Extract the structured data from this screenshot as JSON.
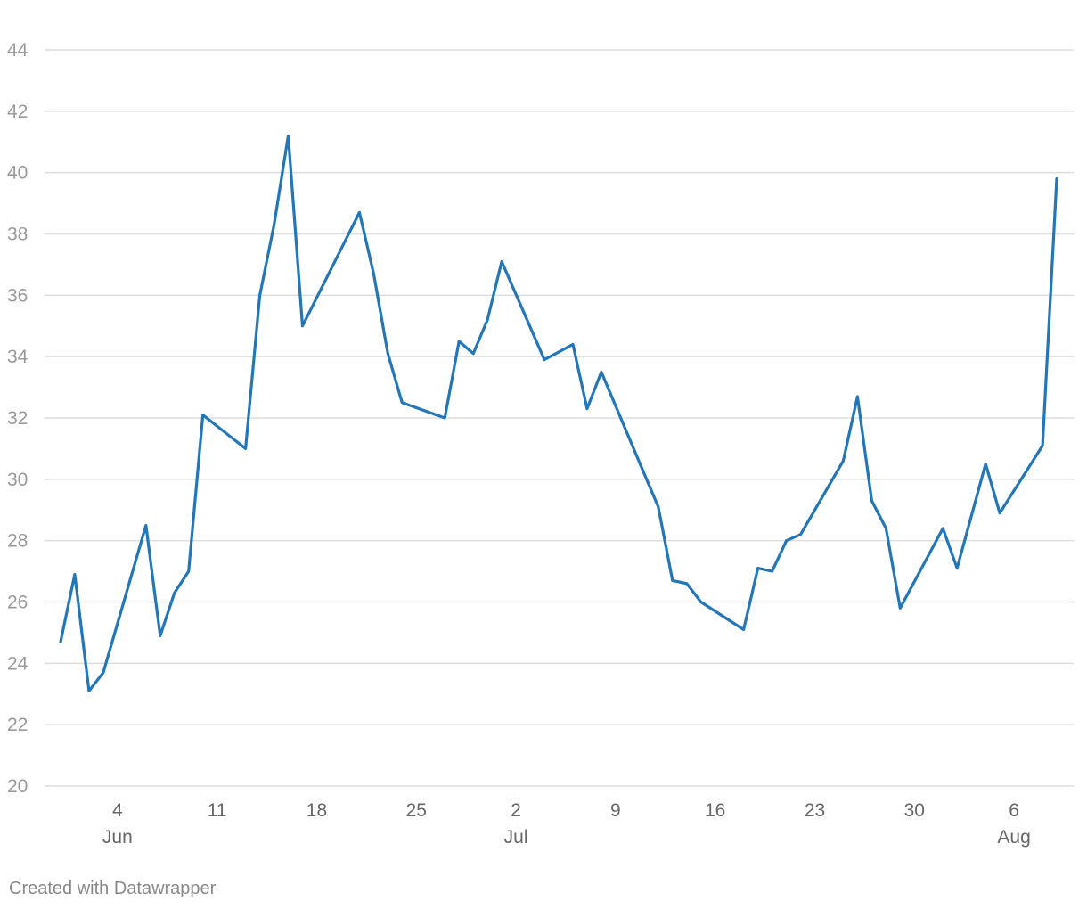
{
  "footer": "Created with Datawrapper",
  "chart_data": {
    "type": "line",
    "title": "",
    "xlabel": "",
    "ylabel": "",
    "ylim": [
      20,
      44
    ],
    "y_ticks": [
      20,
      22,
      24,
      26,
      28,
      30,
      32,
      34,
      36,
      38,
      40,
      42,
      44
    ],
    "x_range": [
      "2020-05-30",
      "2020-08-10"
    ],
    "x_ticks": [
      {
        "date": "2020-06-04",
        "label": "4",
        "month": "Jun"
      },
      {
        "date": "2020-06-11",
        "label": "11",
        "month": ""
      },
      {
        "date": "2020-06-18",
        "label": "18",
        "month": ""
      },
      {
        "date": "2020-06-25",
        "label": "25",
        "month": ""
      },
      {
        "date": "2020-07-02",
        "label": "2",
        "month": "Jul"
      },
      {
        "date": "2020-07-09",
        "label": "9",
        "month": ""
      },
      {
        "date": "2020-07-16",
        "label": "16",
        "month": ""
      },
      {
        "date": "2020-07-23",
        "label": "23",
        "month": ""
      },
      {
        "date": "2020-07-30",
        "label": "30",
        "month": ""
      },
      {
        "date": "2020-08-06",
        "label": "6",
        "month": "Aug"
      }
    ],
    "grid": true,
    "colors": {
      "line": "#2376b7",
      "grid": "#dddddd"
    },
    "series": [
      {
        "points": [
          [
            "2020-05-31",
            24.7
          ],
          [
            "2020-06-01",
            26.9
          ],
          [
            "2020-06-02",
            23.1
          ],
          [
            "2020-06-03",
            23.7
          ],
          [
            "2020-06-06",
            28.5
          ],
          [
            "2020-06-07",
            24.9
          ],
          [
            "2020-06-08",
            26.3
          ],
          [
            "2020-06-09",
            27.0
          ],
          [
            "2020-06-10",
            32.1
          ],
          [
            "2020-06-13",
            31.0
          ],
          [
            "2020-06-14",
            36.0
          ],
          [
            "2020-06-15",
            38.3
          ],
          [
            "2020-06-16",
            41.2
          ],
          [
            "2020-06-17",
            35.0
          ],
          [
            "2020-06-21",
            38.7
          ],
          [
            "2020-06-22",
            36.7
          ],
          [
            "2020-06-23",
            34.1
          ],
          [
            "2020-06-24",
            32.5
          ],
          [
            "2020-06-27",
            32.0
          ],
          [
            "2020-06-28",
            34.5
          ],
          [
            "2020-06-29",
            34.1
          ],
          [
            "2020-06-30",
            35.2
          ],
          [
            "2020-07-01",
            37.1
          ],
          [
            "2020-07-04",
            33.9
          ],
          [
            "2020-07-06",
            34.4
          ],
          [
            "2020-07-07",
            32.3
          ],
          [
            "2020-07-08",
            33.5
          ],
          [
            "2020-07-11",
            30.2
          ],
          [
            "2020-07-12",
            29.1
          ],
          [
            "2020-07-13",
            26.7
          ],
          [
            "2020-07-14",
            26.6
          ],
          [
            "2020-07-15",
            26.0
          ],
          [
            "2020-07-18",
            25.1
          ],
          [
            "2020-07-19",
            27.1
          ],
          [
            "2020-07-20",
            27.0
          ],
          [
            "2020-07-21",
            28.0
          ],
          [
            "2020-07-22",
            28.2
          ],
          [
            "2020-07-25",
            30.6
          ],
          [
            "2020-07-26",
            32.7
          ],
          [
            "2020-07-27",
            29.3
          ],
          [
            "2020-07-28",
            28.4
          ],
          [
            "2020-07-29",
            25.8
          ],
          [
            "2020-08-01",
            28.4
          ],
          [
            "2020-08-02",
            27.1
          ],
          [
            "2020-08-03",
            28.8
          ],
          [
            "2020-08-04",
            30.5
          ],
          [
            "2020-08-05",
            28.9
          ],
          [
            "2020-08-08",
            31.1
          ],
          [
            "2020-08-09",
            39.8
          ]
        ]
      }
    ]
  }
}
